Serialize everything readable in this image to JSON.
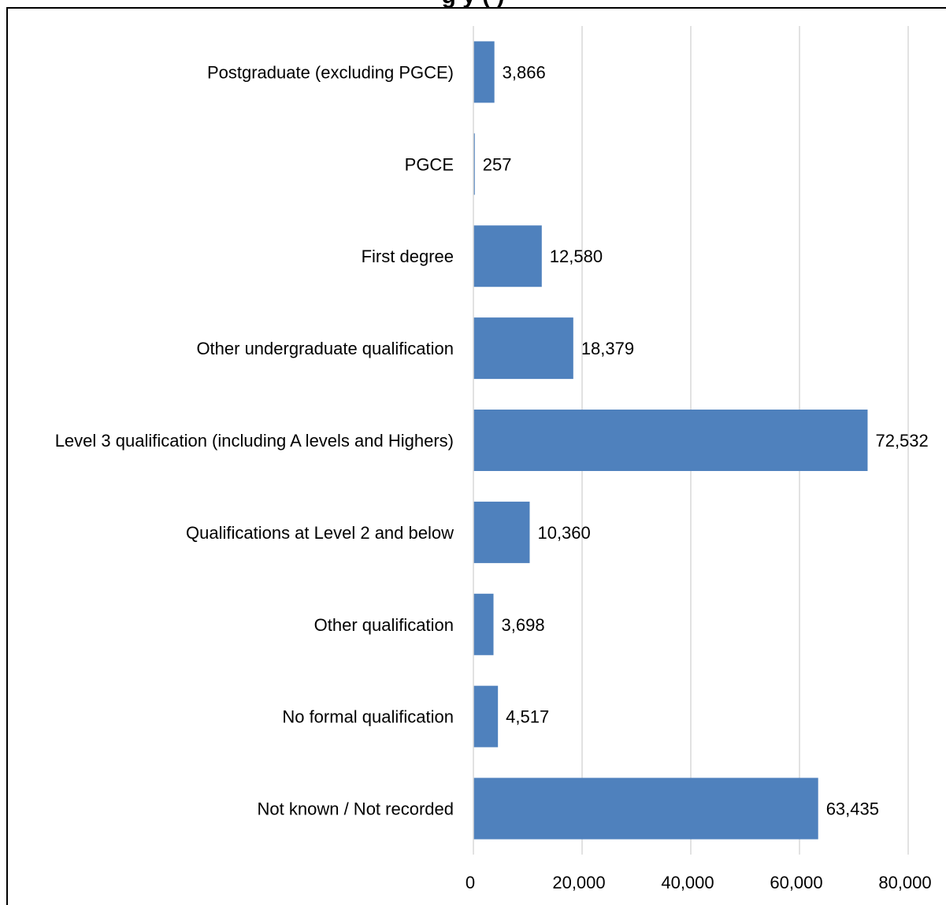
{
  "chart_data": {
    "type": "bar",
    "orientation": "horizontal",
    "title": "",
    "title_visible_fragment": "g                                          y (                                       )",
    "xlabel": "",
    "ylabel": "",
    "categories": [
      "Postgraduate (excluding PGCE)",
      "PGCE",
      "First degree",
      "Other undergraduate qualification",
      "Level 3 qualification (including A levels and Highers)",
      "Qualifications at Level 2 and below",
      "Other qualification",
      "No formal qualification",
      "Not known / Not recorded"
    ],
    "values": [
      3866,
      257,
      12580,
      18379,
      72532,
      10360,
      3698,
      4517,
      63435
    ],
    "value_labels": [
      "3,866",
      "257",
      "12,580",
      "18,379",
      "72,532",
      "10,360",
      "3,698",
      "4,517",
      "63,435"
    ],
    "xlim": [
      0,
      80000
    ],
    "x_ticks": [
      0,
      20000,
      40000,
      60000,
      80000
    ],
    "x_tick_labels": [
      "0",
      "20,000",
      "40,000",
      "60,000",
      "80,000"
    ],
    "grid": "vertical",
    "legend": "none",
    "bar_color": "#4f81bd",
    "grid_color": "#d9d9d9"
  }
}
